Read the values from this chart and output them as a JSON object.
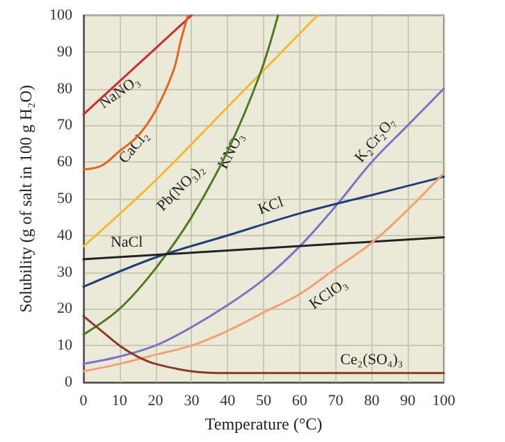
{
  "chart_data": {
    "type": "line",
    "xlabel": "Temperature (°C)",
    "ylabel": "Solubility (g of salt in 100 g H₂O)",
    "xlim": [
      0,
      100
    ],
    "ylim": [
      0,
      100
    ],
    "xticks": [
      0,
      10,
      20,
      30,
      40,
      50,
      60,
      70,
      80,
      90,
      100
    ],
    "yticks": [
      0,
      10,
      20,
      30,
      40,
      50,
      60,
      70,
      80,
      90,
      100
    ],
    "grid": true,
    "marker": "none",
    "line_style": "solid",
    "series": [
      {
        "name": "NaNO₃",
        "color": "#d42a2a",
        "x": [
          0,
          10,
          20,
          30
        ],
        "values": [
          73,
          82,
          91,
          100
        ]
      },
      {
        "name": "CaCl₂",
        "color": "#e8641e",
        "x": [
          0,
          5,
          10,
          15,
          20,
          25,
          27,
          29
        ],
        "values": [
          58,
          59,
          63,
          67,
          74,
          85,
          93,
          100
        ]
      },
      {
        "name": "Pb(NO₃)₂",
        "color": "#f5b82e",
        "x": [
          0,
          20,
          40,
          60,
          65
        ],
        "values": [
          37,
          55,
          75,
          95,
          100
        ]
      },
      {
        "name": "KNO₃",
        "color": "#4f7a1e",
        "x": [
          0,
          10,
          20,
          30,
          40,
          49,
          54
        ],
        "values": [
          13,
          20,
          31,
          45,
          63,
          84,
          100
        ]
      },
      {
        "name": "K₂Cr₂O₇",
        "color": "#7a74c4",
        "x": [
          0,
          10,
          20,
          30,
          40,
          50,
          60,
          70,
          80,
          90,
          100
        ],
        "values": [
          5,
          7,
          10,
          15,
          21,
          28,
          37,
          48,
          60,
          70,
          80
        ]
      },
      {
        "name": "KCl",
        "color": "#1f3f7a",
        "x": [
          0,
          20,
          40,
          60,
          80,
          100
        ],
        "values": [
          26,
          34,
          40,
          46,
          51,
          56
        ]
      },
      {
        "name": "NaCl",
        "color": "#222222",
        "x": [
          0,
          50,
          100
        ],
        "values": [
          33.5,
          36.5,
          39.5
        ]
      },
      {
        "name": "KClO₃",
        "color": "#f5a070",
        "x": [
          0,
          10,
          20,
          30,
          40,
          50,
          60,
          70,
          80,
          90,
          100
        ],
        "values": [
          3,
          5,
          7.5,
          10,
          14,
          19,
          24,
          31,
          38,
          47,
          57
        ]
      },
      {
        "name": "Ce₂(SO₄)₃",
        "color": "#8a3a1e",
        "x": [
          0,
          5,
          10,
          15,
          20,
          30,
          40,
          100
        ],
        "values": [
          18,
          14,
          10,
          7,
          5,
          3,
          2.5,
          2.5
        ]
      }
    ]
  }
}
